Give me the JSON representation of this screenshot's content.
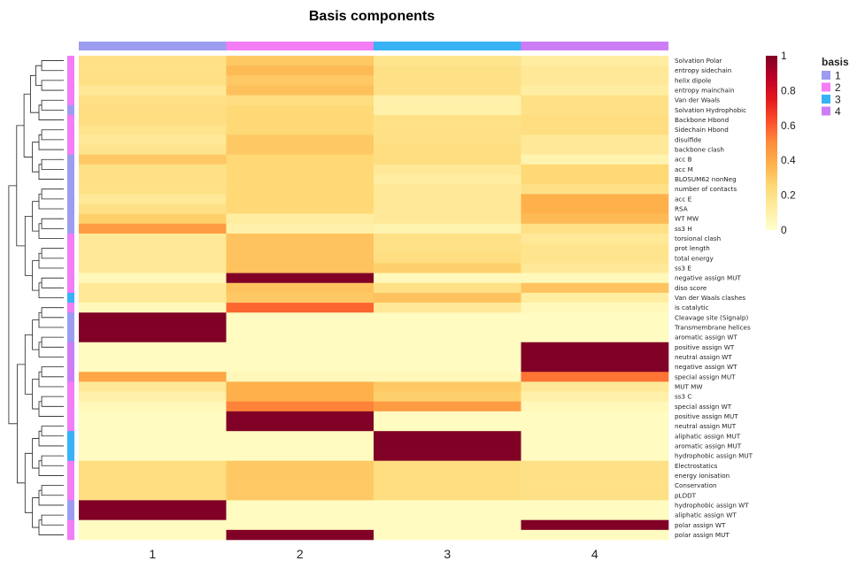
{
  "chart_data": {
    "type": "heatmap",
    "title": "Basis components",
    "columns": [
      "1",
      "2",
      "3",
      "4"
    ],
    "column_basis": [
      1,
      2,
      3,
      4
    ],
    "color_scale": {
      "min": 0,
      "max": 1,
      "ticks": [
        "0",
        "0.2",
        "0.4",
        "0.6",
        "0.8",
        "1"
      ],
      "colors": [
        "#ffffcc",
        "#ffeda0",
        "#fed976",
        "#feb24c",
        "#fd8d3c",
        "#fc4e2a",
        "#e31a1c",
        "#bd0026",
        "#800026"
      ]
    },
    "legend": {
      "title": "basis",
      "position": "right",
      "items": [
        {
          "label": "1",
          "color": "#9c9cf0"
        },
        {
          "label": "2",
          "color": "#f27df5"
        },
        {
          "label": "3",
          "color": "#36b2f5"
        },
        {
          "label": "4",
          "color": "#cc7df5"
        }
      ]
    },
    "rows": [
      {
        "label": "Solvation Polar",
        "basis": 2,
        "values": [
          0.2,
          0.3,
          0.18,
          0.12
        ]
      },
      {
        "label": "entropy sidechain",
        "basis": 2,
        "values": [
          0.2,
          0.35,
          0.2,
          0.15
        ]
      },
      {
        "label": "helix dipole",
        "basis": 2,
        "values": [
          0.2,
          0.3,
          0.2,
          0.15
        ]
      },
      {
        "label": "entropy mainchain",
        "basis": 2,
        "values": [
          0.15,
          0.33,
          0.2,
          0.12
        ]
      },
      {
        "label": "Van der Waals",
        "basis": 2,
        "values": [
          0.2,
          0.22,
          0.1,
          0.2
        ]
      },
      {
        "label": "Solvation Hydrophobic",
        "basis": 1,
        "values": [
          0.22,
          0.25,
          0.1,
          0.2
        ]
      },
      {
        "label": "Backbone Hbond",
        "basis": 2,
        "values": [
          0.22,
          0.25,
          0.2,
          0.22
        ]
      },
      {
        "label": "Sidechain Hbond",
        "basis": 2,
        "values": [
          0.18,
          0.25,
          0.2,
          0.22
        ]
      },
      {
        "label": "disulfide",
        "basis": 2,
        "values": [
          0.15,
          0.3,
          0.2,
          0.15
        ]
      },
      {
        "label": "backbone clash",
        "basis": 2,
        "values": [
          0.18,
          0.3,
          0.22,
          0.15
        ]
      },
      {
        "label": "acc  B",
        "basis": 1,
        "values": [
          0.3,
          0.25,
          0.22,
          0.08
        ]
      },
      {
        "label": "acc  M",
        "basis": 1,
        "values": [
          0.2,
          0.25,
          0.15,
          0.25
        ]
      },
      {
        "label": "BLOSUM62  nonNeg",
        "basis": 1,
        "values": [
          0.2,
          0.25,
          0.12,
          0.25
        ]
      },
      {
        "label": "number  of  contacts",
        "basis": 1,
        "values": [
          0.2,
          0.25,
          0.15,
          0.2
        ]
      },
      {
        "label": "acc  E",
        "basis": 1,
        "values": [
          0.15,
          0.25,
          0.15,
          0.38
        ]
      },
      {
        "label": "RSA",
        "basis": 1,
        "values": [
          0.2,
          0.25,
          0.15,
          0.38
        ]
      },
      {
        "label": "WT  MW",
        "basis": 1,
        "values": [
          0.28,
          0.12,
          0.15,
          0.35
        ]
      },
      {
        "label": "ss3  H",
        "basis": 1,
        "values": [
          0.45,
          0.1,
          0.08,
          0.2
        ]
      },
      {
        "label": "torsional clash",
        "basis": 2,
        "values": [
          0.15,
          0.32,
          0.2,
          0.15
        ]
      },
      {
        "label": "prot  length",
        "basis": 2,
        "values": [
          0.15,
          0.32,
          0.2,
          0.18
        ]
      },
      {
        "label": "total energy",
        "basis": 2,
        "values": [
          0.15,
          0.32,
          0.22,
          0.18
        ]
      },
      {
        "label": "ss3  E",
        "basis": 2,
        "values": [
          0.15,
          0.32,
          0.28,
          0.15
        ]
      },
      {
        "label": "negative  assign  MUT",
        "basis": 2,
        "values": [
          0.05,
          1.0,
          0.05,
          0.05
        ]
      },
      {
        "label": "diso  score",
        "basis": 2,
        "values": [
          0.15,
          0.32,
          0.2,
          0.32
        ]
      },
      {
        "label": "Van der Waals clashes",
        "basis": 3,
        "values": [
          0.15,
          0.3,
          0.32,
          0.12
        ]
      },
      {
        "label": "is  catalytic",
        "basis": 2,
        "values": [
          0.05,
          0.58,
          0.15,
          0.05
        ]
      },
      {
        "label": "Cleavage  site  (Signalp)",
        "basis": 1,
        "values": [
          1.0,
          0.03,
          0.03,
          0.03
        ]
      },
      {
        "label": "Transmembrane  helices",
        "basis": 1,
        "values": [
          1.0,
          0.03,
          0.03,
          0.03
        ]
      },
      {
        "label": "aromatic  assign  WT",
        "basis": 1,
        "values": [
          1.0,
          0.03,
          0.03,
          0.03
        ]
      },
      {
        "label": "positive  assign  WT",
        "basis": 4,
        "values": [
          0.03,
          0.03,
          0.03,
          1.0
        ]
      },
      {
        "label": "neutral  assign  WT",
        "basis": 4,
        "values": [
          0.03,
          0.03,
          0.03,
          1.0
        ]
      },
      {
        "label": "negative  assign  WT",
        "basis": 4,
        "values": [
          0.03,
          0.03,
          0.03,
          1.0
        ]
      },
      {
        "label": "special  assign  MUT",
        "basis": 4,
        "values": [
          0.42,
          0.05,
          0.05,
          0.55
        ]
      },
      {
        "label": "MUT  MW",
        "basis": 2,
        "values": [
          0.15,
          0.38,
          0.3,
          0.15
        ]
      },
      {
        "label": "ss3  C",
        "basis": 2,
        "values": [
          0.1,
          0.38,
          0.28,
          0.1
        ]
      },
      {
        "label": "special  assign  WT",
        "basis": 2,
        "values": [
          0.05,
          0.52,
          0.45,
          0.05
        ]
      },
      {
        "label": "positive  assign  MUT",
        "basis": 2,
        "values": [
          0.03,
          1.0,
          0.03,
          0.03
        ]
      },
      {
        "label": "neutral  assign  MUT",
        "basis": 2,
        "values": [
          0.03,
          1.0,
          0.03,
          0.03
        ]
      },
      {
        "label": "aliphatic  assign  MUT",
        "basis": 3,
        "values": [
          0.03,
          0.03,
          1.0,
          0.03
        ]
      },
      {
        "label": "aromatic  assign  MUT",
        "basis": 3,
        "values": [
          0.03,
          0.03,
          1.0,
          0.03
        ]
      },
      {
        "label": "hydrophobic  assign  MUT",
        "basis": 3,
        "values": [
          0.03,
          0.03,
          1.0,
          0.03
        ]
      },
      {
        "label": "Electrostatics",
        "basis": 2,
        "values": [
          0.22,
          0.3,
          0.22,
          0.2
        ]
      },
      {
        "label": "energy  ionisation",
        "basis": 2,
        "values": [
          0.22,
          0.3,
          0.22,
          0.2
        ]
      },
      {
        "label": "Conservation",
        "basis": 2,
        "values": [
          0.22,
          0.3,
          0.22,
          0.2
        ]
      },
      {
        "label": "pLDDT",
        "basis": 2,
        "values": [
          0.22,
          0.3,
          0.22,
          0.2
        ]
      },
      {
        "label": "hydrophobic  assign  WT",
        "basis": 1,
        "values": [
          1.0,
          0.03,
          0.03,
          0.03
        ]
      },
      {
        "label": "aliphatic  assign  WT",
        "basis": 1,
        "values": [
          1.0,
          0.03,
          0.03,
          0.03
        ]
      },
      {
        "label": "polar  assign  WT",
        "basis": 2,
        "values": [
          0.03,
          0.03,
          0.03,
          1.0
        ]
      },
      {
        "label": "polar  assign  MUT",
        "basis": 2,
        "values": [
          0.03,
          1.0,
          0.03,
          0.03
        ]
      }
    ]
  }
}
